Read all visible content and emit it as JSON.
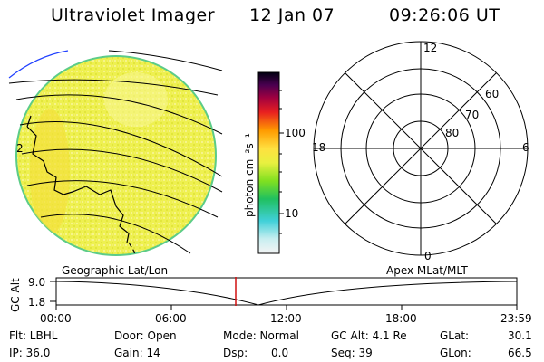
{
  "header": {
    "title": "Ultraviolet Imager",
    "date": "12 Jan 07",
    "time": "09:26:06 UT"
  },
  "colorbar": {
    "unit_label": "photon cm⁻²s⁻¹",
    "tick_100": "100",
    "tick_10": "10"
  },
  "polar_plot": {
    "mlt_top": "12",
    "mlt_left": "18",
    "mlt_right": "6",
    "mlt_bottom": "0",
    "lat_60": "60",
    "lat_70": "70",
    "lat_80": "80"
  },
  "map_labels": {
    "left": "Geographic Lat/Lon",
    "right": "Apex MLat/MLT"
  },
  "altitude_plot": {
    "ylabel": "GC Alt",
    "ymax": "9.0",
    "ymin": "1.8",
    "x_ticks": [
      "00:00",
      "06:00",
      "12:00",
      "18:00",
      "23:59"
    ]
  },
  "status": {
    "flt": "Flt: LBHL",
    "ip": "IP: 36.0",
    "door": "Door: Open",
    "gain": "Gain: 14",
    "mode": "Mode: Normal",
    "dsp_label": "Dsp:",
    "dsp_value": "0.0",
    "gc_alt": "GC Alt: 4.1 Re",
    "seq": "Seq: 39",
    "glat_label": "GLat:",
    "glat_value": "30.1",
    "glon_label": "GLon:",
    "glon_value": "66.5"
  },
  "colors": {
    "disk_fill": "#eef050",
    "disk_edge": "#5ccc88",
    "marker": "#d01010",
    "blue_line": "#2040ff"
  }
}
